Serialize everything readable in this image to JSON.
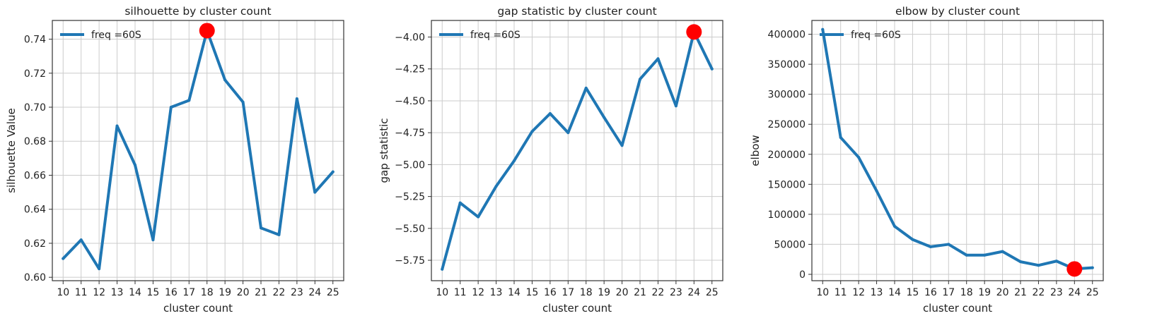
{
  "chart_data": [
    {
      "type": "line",
      "title": "silhouette by cluster count",
      "xlabel": "cluster count",
      "ylabel": "silhouette Value",
      "x": [
        10,
        11,
        12,
        13,
        14,
        15,
        16,
        17,
        18,
        19,
        20,
        21,
        22,
        23,
        24,
        25
      ],
      "series": [
        {
          "name": "freq =60S",
          "values": [
            0.611,
            0.622,
            0.605,
            0.689,
            0.666,
            0.622,
            0.7,
            0.704,
            0.745,
            0.716,
            0.703,
            0.629,
            0.625,
            0.705,
            0.65,
            0.662
          ]
        }
      ],
      "highlight": {
        "x": 18,
        "y": 0.745
      },
      "yticks": [
        0.6,
        0.62,
        0.64,
        0.66,
        0.68,
        0.7,
        0.72,
        0.74
      ],
      "ytick_labels": [
        "0.60",
        "0.62",
        "0.64",
        "0.66",
        "0.68",
        "0.70",
        "0.72",
        "0.74"
      ],
      "xlim": [
        9.4,
        25.6
      ],
      "ylim": [
        0.598,
        0.751
      ],
      "grid": true,
      "legend_position": "top-left",
      "colors": {
        "line": "#1f77b4",
        "highlight": "#ff0000"
      }
    },
    {
      "type": "line",
      "title": "gap statistic by cluster count",
      "xlabel": "cluster count",
      "ylabel": "gap statistic",
      "x": [
        10,
        11,
        12,
        13,
        14,
        15,
        16,
        17,
        18,
        19,
        20,
        21,
        22,
        23,
        24,
        25
      ],
      "series": [
        {
          "name": "freq =60S",
          "values": [
            -5.82,
            -5.3,
            -5.41,
            -5.17,
            -4.97,
            -4.74,
            -4.6,
            -4.75,
            -4.4,
            -4.63,
            -4.85,
            -4.33,
            -4.17,
            -4.54,
            -3.96,
            -4.25
          ]
        }
      ],
      "highlight": {
        "x": 24,
        "y": -3.96
      },
      "yticks": [
        -5.75,
        -5.5,
        -5.25,
        -5.0,
        -4.75,
        -4.5,
        -4.25,
        -4.0
      ],
      "ytick_labels": [
        "−5.75",
        "−5.50",
        "−5.25",
        "−5.00",
        "−4.75",
        "−4.50",
        "−4.25",
        "−4.00"
      ],
      "xlim": [
        9.4,
        25.6
      ],
      "ylim": [
        -5.91,
        -3.87
      ],
      "grid": true,
      "legend_position": "top-left",
      "colors": {
        "line": "#1f77b4",
        "highlight": "#ff0000"
      }
    },
    {
      "type": "line",
      "title": "elbow by cluster count",
      "xlabel": "cluster count",
      "ylabel": "elbow",
      "x": [
        10,
        11,
        12,
        13,
        14,
        15,
        16,
        17,
        18,
        19,
        20,
        21,
        22,
        23,
        24,
        25
      ],
      "series": [
        {
          "name": "freq =60S",
          "values": [
            408000,
            228000,
            195000,
            139000,
            80000,
            58000,
            46000,
            50000,
            32000,
            32000,
            38000,
            21000,
            15000,
            22000,
            9000,
            11000
          ]
        }
      ],
      "highlight": {
        "x": 24,
        "y": 9000
      },
      "yticks": [
        0,
        50000,
        100000,
        150000,
        200000,
        250000,
        300000,
        350000,
        400000
      ],
      "ytick_labels": [
        "0",
        "50000",
        "100000",
        "150000",
        "200000",
        "250000",
        "300000",
        "350000",
        "400000"
      ],
      "xlim": [
        9.4,
        25.6
      ],
      "ylim": [
        -10600,
        423000
      ],
      "grid": true,
      "legend_position": "top-left",
      "colors": {
        "line": "#1f77b4",
        "highlight": "#ff0000"
      }
    }
  ]
}
